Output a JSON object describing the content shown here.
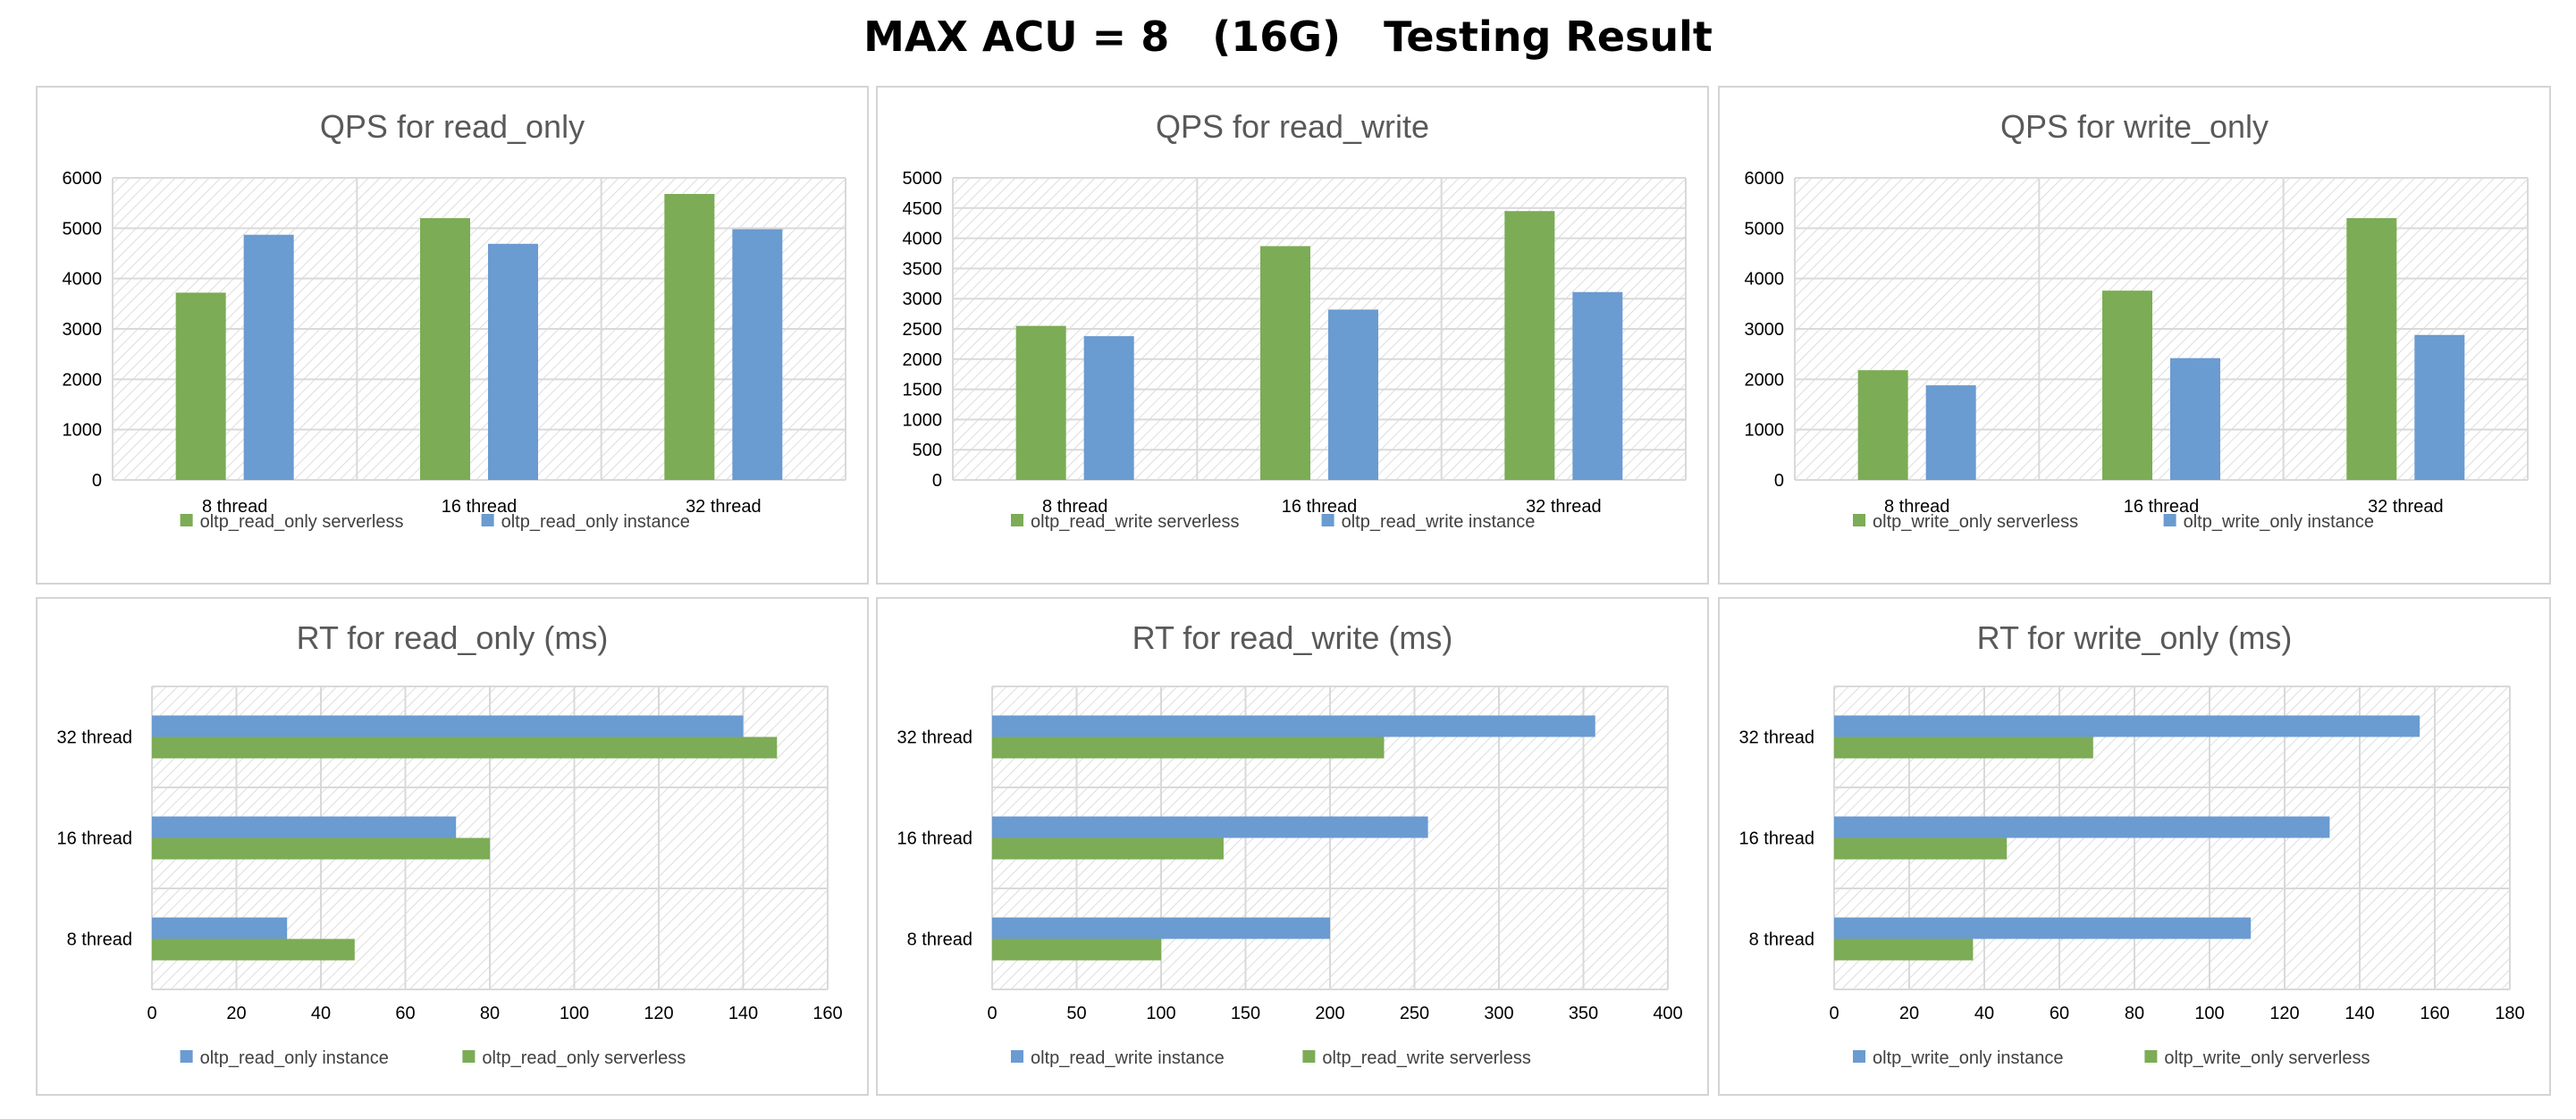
{
  "page_title": "MAX ACU = 8   (16G)   Testing Result",
  "colors": {
    "green": "#7cac55",
    "blue": "#6a9bd1",
    "grid": "#d9d9d9",
    "hatch": "#cfcfcf",
    "text": "#595959"
  },
  "chart_data": [
    {
      "type": "bar",
      "orientation": "vertical",
      "title": "QPS for read_only",
      "categories": [
        "8 thread",
        "16 thread",
        "32 thread"
      ],
      "series": [
        {
          "name": "oltp_read_only serverless",
          "color": "green",
          "values": [
            3720,
            5200,
            5680
          ]
        },
        {
          "name": "oltp_read_only instance",
          "color": "blue",
          "values": [
            4870,
            4690,
            4980
          ]
        }
      ],
      "ylim": [
        0,
        6000
      ],
      "ticks": [
        0,
        1000,
        2000,
        3000,
        4000,
        5000,
        6000
      ],
      "legend": "bottom"
    },
    {
      "type": "bar",
      "orientation": "vertical",
      "title": "QPS for read_write",
      "categories": [
        "8 thread",
        "16 thread",
        "32 thread"
      ],
      "series": [
        {
          "name": "oltp_read_write serverless",
          "color": "green",
          "values": [
            2550,
            3870,
            4450
          ]
        },
        {
          "name": "oltp_read_write instance",
          "color": "blue",
          "values": [
            2380,
            2820,
            3110
          ]
        }
      ],
      "ylim": [
        0,
        5000
      ],
      "ticks": [
        0,
        500,
        1000,
        1500,
        2000,
        2500,
        3000,
        3500,
        4000,
        4500,
        5000
      ],
      "legend": "bottom"
    },
    {
      "type": "bar",
      "orientation": "vertical",
      "title": "QPS for write_only",
      "categories": [
        "8 thread",
        "16 thread",
        "32 thread"
      ],
      "series": [
        {
          "name": "oltp_write_only serverless",
          "color": "green",
          "values": [
            2180,
            3760,
            5200
          ]
        },
        {
          "name": "oltp_write_only instance",
          "color": "blue",
          "values": [
            1880,
            2420,
            2880
          ]
        }
      ],
      "ylim": [
        0,
        6000
      ],
      "ticks": [
        0,
        1000,
        2000,
        3000,
        4000,
        5000,
        6000
      ],
      "legend": "bottom"
    },
    {
      "type": "bar",
      "orientation": "horizontal",
      "title": "RT for read_only (ms)",
      "categories": [
        "8 thread",
        "16 thread",
        "32 thread"
      ],
      "series": [
        {
          "name": "oltp_read_only instance",
          "color": "blue",
          "values": [
            32,
            72,
            140
          ]
        },
        {
          "name": "oltp_read_only serverless",
          "color": "green",
          "values": [
            48,
            80,
            148
          ]
        }
      ],
      "xlim": [
        0,
        160
      ],
      "ticks": [
        0,
        20,
        40,
        60,
        80,
        100,
        120,
        140,
        160
      ],
      "legend": "bottom"
    },
    {
      "type": "bar",
      "orientation": "horizontal",
      "title": "RT for read_write (ms)",
      "categories": [
        "8 thread",
        "16 thread",
        "32 thread"
      ],
      "series": [
        {
          "name": "oltp_read_write instance",
          "color": "blue",
          "values": [
            200,
            258,
            357
          ]
        },
        {
          "name": "oltp_read_write serverless",
          "color": "green",
          "values": [
            100,
            137,
            232
          ]
        }
      ],
      "xlim": [
        0,
        400
      ],
      "ticks": [
        0,
        50,
        100,
        150,
        200,
        250,
        300,
        350,
        400
      ],
      "legend": "bottom"
    },
    {
      "type": "bar",
      "orientation": "horizontal",
      "title": "RT for write_only (ms)",
      "categories": [
        "8 thread",
        "16 thread",
        "32 thread"
      ],
      "series": [
        {
          "name": "oltp_write_only instance",
          "color": "blue",
          "values": [
            111,
            132,
            156
          ]
        },
        {
          "name": "oltp_write_only serverless",
          "color": "green",
          "values": [
            37,
            46,
            69
          ]
        }
      ],
      "xlim": [
        0,
        180
      ],
      "ticks": [
        0,
        20,
        40,
        60,
        80,
        100,
        120,
        140,
        160,
        180
      ],
      "legend": "bottom"
    }
  ]
}
